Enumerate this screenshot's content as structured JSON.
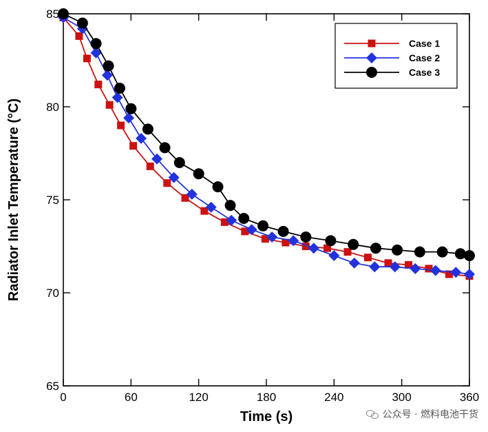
{
  "chart_data": {
    "type": "line",
    "xlabel": "Time (s)",
    "ylabel": "Radiator Inlet Temperature (°C)",
    "xlim": [
      0,
      360
    ],
    "ylim": [
      65,
      85
    ],
    "xticks": [
      0,
      60,
      120,
      180,
      240,
      300,
      360
    ],
    "yticks": [
      65,
      70,
      75,
      80,
      85
    ],
    "grid": false,
    "legend_position": "top-right",
    "series": [
      {
        "name": "Case 1",
        "color": "#cc1111",
        "marker": "square",
        "x": [
          0,
          14,
          21,
          31,
          41,
          51,
          62,
          77,
          92,
          108,
          125,
          143,
          161,
          179,
          197,
          215,
          234,
          252,
          270,
          288,
          306,
          324,
          342,
          360
        ],
        "y": [
          84.8,
          83.8,
          82.6,
          81.2,
          80.1,
          79.0,
          77.9,
          76.8,
          75.9,
          75.1,
          74.4,
          73.8,
          73.3,
          72.9,
          72.7,
          72.5,
          72.4,
          72.2,
          71.9,
          71.6,
          71.5,
          71.3,
          71.0,
          70.9
        ]
      },
      {
        "name": "Case 2",
        "color": "#2233dd",
        "marker": "diamond",
        "x": [
          0,
          17,
          29,
          39,
          48,
          58,
          69,
          83,
          98,
          114,
          131,
          149,
          167,
          185,
          204,
          222,
          240,
          258,
          276,
          294,
          312,
          330,
          348,
          360
        ],
        "y": [
          84.8,
          84.2,
          82.9,
          81.7,
          80.5,
          79.4,
          78.3,
          77.2,
          76.2,
          75.3,
          74.6,
          73.9,
          73.4,
          73.0,
          72.8,
          72.4,
          72.0,
          71.6,
          71.4,
          71.4,
          71.3,
          71.2,
          71.1,
          71.0
        ]
      },
      {
        "name": "Case 3",
        "color": "#000000",
        "marker": "circle",
        "x": [
          0,
          17,
          29,
          40,
          50,
          60,
          75,
          90,
          103,
          120,
          137,
          148,
          160,
          177,
          195,
          215,
          237,
          257,
          277,
          296,
          316,
          336,
          352,
          360
        ],
        "y": [
          85.0,
          84.5,
          83.4,
          82.2,
          81.0,
          79.9,
          78.8,
          77.8,
          77.0,
          76.4,
          75.7,
          74.7,
          74.0,
          73.6,
          73.3,
          73.0,
          72.8,
          72.6,
          72.4,
          72.3,
          72.2,
          72.2,
          72.1,
          72.0
        ]
      }
    ]
  },
  "watermark": {
    "text": "公众号 · 燃料电池干货",
    "icon": "wechat-icon"
  }
}
